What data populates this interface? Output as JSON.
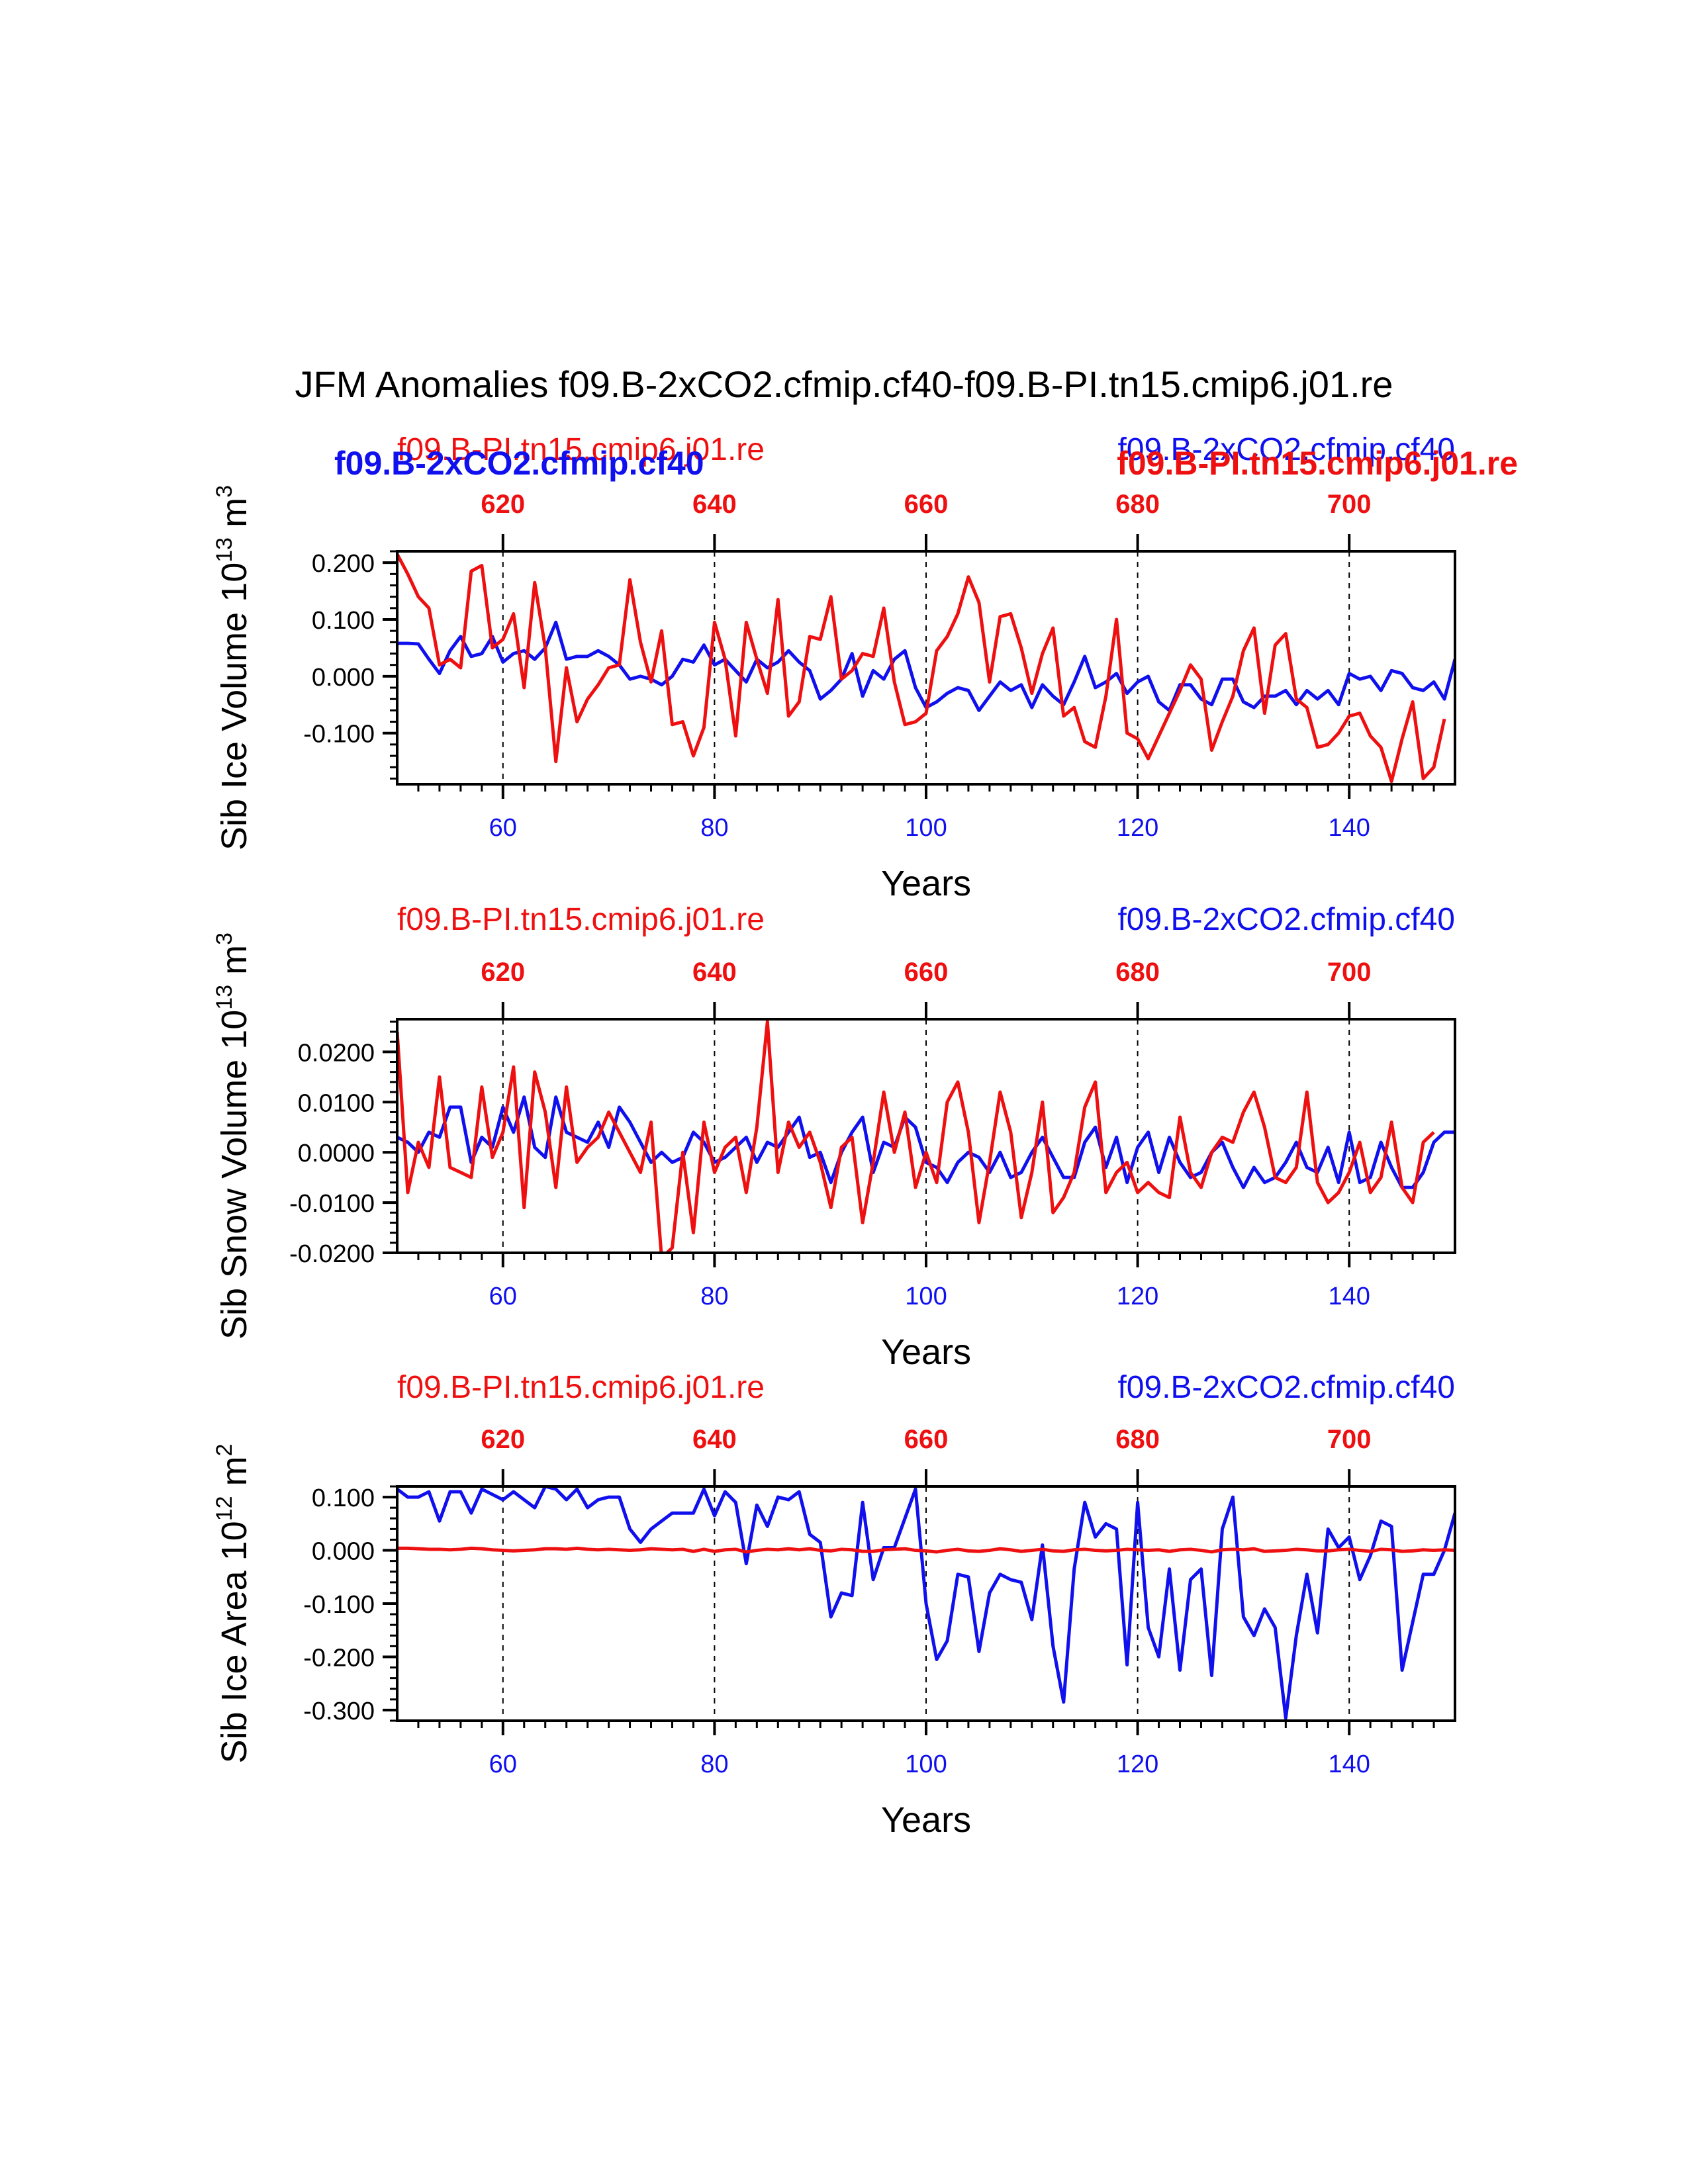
{
  "figure_title": "JFM Anomalies f09.B-2xCO2.cfmip.cf40-f09.B-PI.tn15.cmip6.j01.re",
  "colors": {
    "blue": "#1010ee",
    "red": "#ee1010",
    "axis": "#000000"
  },
  "chart_data": [
    {
      "type": "line",
      "name": "sib-ice-volume",
      "ylabel": "Sib Ice Volume 10",
      "ylabel_sup": "13",
      "ylabel_unit": " m",
      "ylabel_unit_sup": "3",
      "xlabel": "Years",
      "xlim": [
        50,
        150
      ],
      "ylim": [
        -0.19,
        0.22
      ],
      "yticks": [
        0.2,
        0.1,
        0.0,
        -0.1
      ],
      "ytick_labels": [
        "0.200",
        "0.100",
        "0.000",
        "-0.100"
      ],
      "yminor_step": 0.02,
      "xticks_bottom": [
        60,
        80,
        100,
        120,
        140
      ],
      "xtick_labels_bottom": [
        "60",
        "80",
        "100",
        "120",
        "140"
      ],
      "xticks_top": [
        620,
        640,
        660,
        680,
        700
      ],
      "xtick_labels_top": [
        "620",
        "640",
        "660",
        "680",
        "700"
      ],
      "top_axis_offset": 560,
      "left_label_thin": "f09.B-PI.tn15.cmip6.j01.re",
      "left_label_bold": "f09.B-2xCO2.cfmip.cf40",
      "right_label_thin": "f09.B-2xCO2.cfmip.cf40",
      "right_label_bold": "f09.B-PI.tn15.cmip6.j01.re",
      "series": [
        {
          "name": "f09.B-2xCO2.cfmip.cf40",
          "axis": "bottom",
          "color": "#1010ee",
          "x_start": 50,
          "values": [
            0.058,
            0.058,
            0.057,
            0.03,
            0.005,
            0.045,
            0.07,
            0.035,
            0.04,
            0.07,
            0.025,
            0.04,
            0.045,
            0.03,
            0.05,
            0.095,
            0.03,
            0.035,
            0.035,
            0.045,
            0.035,
            0.02,
            -0.005,
            0.0,
            -0.005,
            -0.015,
            0.0,
            0.03,
            0.025,
            0.055,
            0.02,
            0.03,
            0.01,
            -0.01,
            0.03,
            0.015,
            0.025,
            0.045,
            0.025,
            0.01,
            -0.04,
            -0.025,
            -0.005,
            0.04,
            -0.035,
            0.01,
            -0.005,
            0.03,
            0.045,
            -0.02,
            -0.055,
            -0.045,
            -0.03,
            -0.02,
            -0.025,
            -0.06,
            -0.035,
            -0.01,
            -0.025,
            -0.015,
            -0.055,
            -0.015,
            -0.035,
            -0.05,
            -0.01,
            0.035,
            -0.02,
            -0.01,
            0.005,
            -0.03,
            -0.01,
            0.0,
            -0.045,
            -0.06,
            -0.015,
            -0.015,
            -0.04,
            -0.05,
            -0.005,
            -0.005,
            -0.045,
            -0.055,
            -0.035,
            -0.035,
            -0.025,
            -0.05,
            -0.025,
            -0.04,
            -0.025,
            -0.05,
            0.005,
            -0.005,
            0.0,
            -0.025,
            0.01,
            0.005,
            -0.02,
            -0.025,
            -0.01,
            -0.04,
            0.03
          ]
        },
        {
          "name": "f09.B-PI.tn15.cmip6.j01.re",
          "axis": "top",
          "color": "#ee1010",
          "x_start": 610,
          "values": [
            0.215,
            0.18,
            0.14,
            0.12,
            0.02,
            0.03,
            0.015,
            0.185,
            0.195,
            0.05,
            0.065,
            0.11,
            -0.02,
            0.165,
            0.05,
            -0.15,
            0.015,
            -0.08,
            -0.04,
            -0.015,
            0.015,
            0.02,
            0.17,
            0.06,
            -0.01,
            0.08,
            -0.085,
            -0.08,
            -0.14,
            -0.09,
            0.095,
            0.03,
            -0.105,
            0.095,
            0.03,
            -0.03,
            0.135,
            -0.07,
            -0.045,
            0.07,
            0.065,
            0.14,
            -0.005,
            0.01,
            0.04,
            0.035,
            0.12,
            -0.01,
            -0.085,
            -0.08,
            -0.065,
            0.045,
            0.07,
            0.11,
            0.175,
            0.13,
            -0.01,
            0.105,
            0.11,
            0.05,
            -0.03,
            0.04,
            0.085,
            -0.07,
            -0.055,
            -0.115,
            -0.125,
            -0.035,
            0.1,
            -0.1,
            -0.11,
            -0.145,
            -0.105,
            -0.065,
            -0.025,
            0.02,
            -0.005,
            -0.13,
            -0.08,
            -0.035,
            0.045,
            0.085,
            -0.065,
            0.055,
            0.075,
            -0.04,
            -0.055,
            -0.125,
            -0.12,
            -0.1,
            -0.07,
            -0.065,
            -0.105,
            -0.125,
            -0.185,
            -0.11,
            -0.045,
            -0.18,
            -0.16,
            -0.075
          ]
        }
      ]
    },
    {
      "type": "line",
      "name": "sib-snow-volume",
      "ylabel": "Sib Snow Volume 10",
      "ylabel_sup": "13",
      "ylabel_unit": " m",
      "ylabel_unit_sup": "3",
      "xlabel": "Years",
      "xlim": [
        50,
        150
      ],
      "ylim": [
        -0.02,
        0.0265
      ],
      "yticks": [
        0.02,
        0.01,
        0.0,
        -0.01,
        -0.02
      ],
      "ytick_labels": [
        "0.0200",
        "0.0100",
        "0.0000",
        "-0.0100",
        "-0.0200"
      ],
      "yminor_step": 0.002,
      "xticks_bottom": [
        60,
        80,
        100,
        120,
        140
      ],
      "xtick_labels_bottom": [
        "60",
        "80",
        "100",
        "120",
        "140"
      ],
      "xticks_top": [
        620,
        640,
        660,
        680,
        700
      ],
      "xtick_labels_top": [
        "620",
        "640",
        "660",
        "680",
        "700"
      ],
      "top_axis_offset": 560,
      "left_label_thin": "f09.B-PI.tn15.cmip6.j01.re",
      "right_label_thin": "f09.B-2xCO2.cfmip.cf40",
      "series": [
        {
          "name": "f09.B-2xCO2.cfmip.cf40",
          "axis": "bottom",
          "color": "#1010ee",
          "x_start": 50,
          "values": [
            0.003,
            0.002,
            0.0,
            0.004,
            0.003,
            0.009,
            0.009,
            -0.002,
            0.003,
            0.001,
            0.009,
            0.004,
            0.011,
            0.001,
            -0.001,
            0.011,
            0.004,
            0.003,
            0.002,
            0.006,
            0.001,
            0.009,
            0.006,
            0.002,
            -0.002,
            0.0,
            -0.002,
            -0.001,
            0.004,
            0.002,
            -0.002,
            -0.001,
            0.001,
            0.003,
            -0.002,
            0.002,
            0.001,
            0.004,
            0.007,
            -0.001,
            0.0,
            -0.006,
            0.0,
            0.004,
            0.007,
            -0.004,
            0.002,
            0.001,
            0.007,
            0.005,
            -0.002,
            -0.003,
            -0.006,
            -0.002,
            0.0,
            -0.001,
            -0.004,
            0.0,
            -0.005,
            -0.004,
            0.0,
            0.003,
            -0.001,
            -0.005,
            -0.005,
            0.002,
            0.005,
            -0.003,
            0.003,
            -0.006,
            0.001,
            0.004,
            -0.004,
            0.003,
            -0.002,
            -0.005,
            -0.004,
            0.0,
            0.002,
            -0.003,
            -0.007,
            -0.003,
            -0.006,
            -0.005,
            -0.002,
            0.002,
            -0.003,
            -0.004,
            0.001,
            -0.006,
            0.004,
            -0.006,
            -0.005,
            0.002,
            -0.003,
            -0.007,
            -0.007,
            -0.004,
            0.002,
            0.004,
            0.004
          ]
        },
        {
          "name": "f09.B-PI.tn15.cmip6.j01.re",
          "axis": "top",
          "color": "#ee1010",
          "x_start": 610,
          "values": [
            0.024,
            -0.008,
            0.002,
            -0.003,
            0.015,
            -0.003,
            -0.004,
            -0.005,
            0.013,
            -0.001,
            0.004,
            0.017,
            -0.011,
            0.016,
            0.008,
            -0.007,
            0.013,
            -0.002,
            0.001,
            0.003,
            0.008,
            0.004,
            0.0,
            -0.004,
            0.006,
            -0.021,
            -0.019,
            0.0,
            -0.016,
            0.006,
            -0.004,
            0.001,
            0.003,
            -0.008,
            0.005,
            0.026,
            -0.004,
            0.006,
            0.001,
            0.004,
            -0.002,
            -0.011,
            0.001,
            0.003,
            -0.014,
            -0.002,
            0.012,
            0.0,
            0.008,
            -0.007,
            0.0,
            -0.006,
            0.01,
            0.014,
            0.004,
            -0.014,
            -0.002,
            0.012,
            0.004,
            -0.013,
            -0.004,
            0.01,
            -0.012,
            -0.009,
            -0.004,
            0.009,
            0.014,
            -0.008,
            -0.004,
            -0.002,
            -0.008,
            -0.006,
            -0.008,
            -0.009,
            0.007,
            -0.004,
            -0.007,
            0.0,
            0.003,
            0.002,
            0.008,
            0.012,
            0.005,
            -0.005,
            -0.006,
            -0.003,
            0.012,
            -0.006,
            -0.01,
            -0.008,
            -0.004,
            0.002,
            -0.008,
            -0.005,
            0.006,
            -0.007,
            -0.01,
            0.002,
            0.004
          ]
        }
      ]
    },
    {
      "type": "line",
      "name": "sib-ice-area",
      "ylabel": "Sib Ice Area 10",
      "ylabel_sup": "12",
      "ylabel_unit": " m",
      "ylabel_unit_sup": "2",
      "xlabel": "Years",
      "xlim": [
        50,
        150
      ],
      "ylim": [
        -0.32,
        0.12
      ],
      "yticks": [
        0.1,
        0.0,
        -0.1,
        -0.2,
        -0.3
      ],
      "ytick_labels": [
        "0.100",
        "0.000",
        "-0.100",
        "-0.200",
        "-0.300"
      ],
      "yminor_step": 0.02,
      "xticks_bottom": [
        60,
        80,
        100,
        120,
        140
      ],
      "xtick_labels_bottom": [
        "60",
        "80",
        "100",
        "120",
        "140"
      ],
      "xticks_top": [
        620,
        640,
        660,
        680,
        700
      ],
      "xtick_labels_top": [
        "620",
        "640",
        "660",
        "680",
        "700"
      ],
      "top_axis_offset": 560,
      "left_label_thin": "f09.B-PI.tn15.cmip6.j01.re",
      "right_label_thin": "f09.B-2xCO2.cfmip.cf40",
      "series": [
        {
          "name": "f09.B-2xCO2.cfmip.cf40",
          "axis": "bottom",
          "color": "#1010ee",
          "x_start": 50,
          "values": [
            0.115,
            0.1,
            0.1,
            0.11,
            0.055,
            0.11,
            0.11,
            0.07,
            0.115,
            0.105,
            0.095,
            0.11,
            0.095,
            0.08,
            0.12,
            0.115,
            0.095,
            0.115,
            0.08,
            0.095,
            0.1,
            0.1,
            0.04,
            0.015,
            0.04,
            0.055,
            0.07,
            0.07,
            0.07,
            0.115,
            0.065,
            0.11,
            0.09,
            -0.025,
            0.085,
            0.045,
            0.1,
            0.095,
            0.11,
            0.03,
            0.015,
            -0.125,
            -0.08,
            -0.085,
            0.09,
            -0.055,
            0.005,
            0.005,
            0.06,
            0.115,
            -0.1,
            -0.205,
            -0.17,
            -0.045,
            -0.05,
            -0.19,
            -0.08,
            -0.045,
            -0.055,
            -0.06,
            -0.13,
            0.01,
            -0.18,
            -0.285,
            -0.035,
            0.09,
            0.025,
            0.05,
            0.04,
            -0.215,
            0.09,
            -0.145,
            -0.2,
            -0.035,
            -0.225,
            -0.055,
            -0.035,
            -0.235,
            0.04,
            0.1,
            -0.125,
            -0.16,
            -0.11,
            -0.145,
            -0.315,
            -0.16,
            -0.045,
            -0.155,
            0.04,
            0.005,
            0.025,
            -0.055,
            -0.01,
            0.055,
            0.045,
            -0.225,
            -0.135,
            -0.045,
            -0.045,
            0.0,
            0.07
          ]
        },
        {
          "name": "f09.B-PI.tn15.cmip6.j01.re",
          "axis": "top",
          "color": "#ee1010",
          "x_start": 610,
          "values": [
            0.004,
            0.004,
            0.003,
            0.002,
            0.002,
            0.001,
            0.002,
            0.004,
            0.003,
            0.001,
            0.0,
            -0.001,
            0.0,
            0.001,
            0.003,
            0.003,
            0.002,
            0.004,
            0.002,
            0.001,
            0.002,
            0.001,
            0.0,
            0.001,
            0.003,
            0.002,
            0.001,
            0.002,
            -0.002,
            0.002,
            -0.002,
            0.001,
            0.002,
            -0.003,
            0.0,
            0.002,
            0.001,
            0.003,
            0.001,
            0.003,
            0.0,
            -0.001,
            0.002,
            0.001,
            -0.002,
            -0.002,
            0.001,
            0.002,
            0.003,
            0.0,
            -0.001,
            -0.003,
            0.0,
            0.002,
            -0.001,
            -0.002,
            0.0,
            0.003,
            0.001,
            -0.002,
            0.0,
            0.002,
            -0.001,
            -0.002,
            0.001,
            0.002,
            0.0,
            -0.001,
            0.0,
            0.002,
            0.001,
            0.0,
            0.001,
            -0.002,
            0.001,
            0.002,
            0.0,
            -0.003,
            0.001,
            0.002,
            0.001,
            0.003,
            -0.002,
            -0.001,
            0.0,
            0.002,
            0.001,
            -0.001,
            -0.001,
            0.001,
            0.002,
            0.0,
            -0.002,
            0.002,
            0.001,
            -0.002,
            -0.001,
            0.001,
            0.0,
            0.001,
            0.0
          ]
        }
      ]
    }
  ]
}
